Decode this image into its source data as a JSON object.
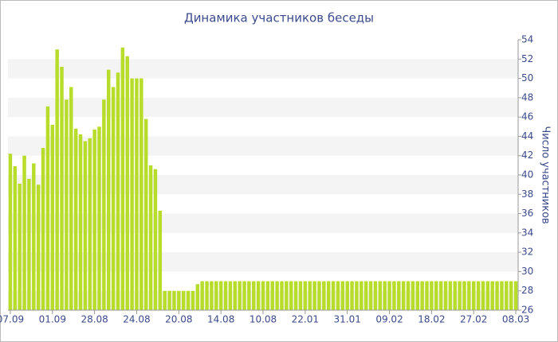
{
  "chart_data": {
    "type": "bar",
    "title": "Динамика участников беседы",
    "y_label": "Число участников",
    "categories": [
      "07.09",
      null,
      null,
      null,
      null,
      null,
      null,
      null,
      null,
      "01.09",
      null,
      null,
      null,
      null,
      null,
      null,
      null,
      null,
      "28.08",
      null,
      null,
      null,
      null,
      null,
      null,
      null,
      null,
      "24.08",
      null,
      null,
      null,
      null,
      null,
      null,
      null,
      null,
      "20.08",
      null,
      null,
      null,
      null,
      null,
      null,
      null,
      null,
      "14.08",
      null,
      null,
      null,
      null,
      null,
      null,
      null,
      null,
      "10.08",
      null,
      null,
      null,
      null,
      null,
      null,
      null,
      null,
      "22.01",
      null,
      null,
      null,
      null,
      null,
      null,
      null,
      null,
      "31.01",
      null,
      null,
      null,
      null,
      null,
      null,
      null,
      null,
      "09.02",
      null,
      null,
      null,
      null,
      null,
      null,
      null,
      null,
      "18.02",
      null,
      null,
      null,
      null,
      null,
      null,
      null,
      null,
      "27.02",
      null,
      null,
      null,
      null,
      null,
      null,
      null,
      null,
      "08.03"
    ],
    "values": [
      42.2,
      40.9,
      39.1,
      42.0,
      39.6,
      41.2,
      39.0,
      42.8,
      47.1,
      45.2,
      53.0,
      51.2,
      47.8,
      49.1,
      44.8,
      44.2,
      43.5,
      43.8,
      44.7,
      45.0,
      47.8,
      50.9,
      49.1,
      50.6,
      53.2,
      52.3,
      50.0,
      50.0,
      50.0,
      45.8,
      41.0,
      40.6,
      36.3,
      28,
      28,
      28,
      28,
      28,
      28,
      28,
      28.7,
      29,
      29,
      29,
      29,
      29,
      29,
      29,
      29,
      29,
      29,
      29,
      29,
      29,
      29,
      29,
      29,
      29,
      29,
      29,
      29,
      29,
      29,
      29,
      29,
      29,
      29,
      29,
      29,
      29,
      29,
      29,
      29,
      29,
      29,
      29,
      29,
      29,
      29,
      29,
      29,
      29,
      29,
      29,
      29,
      29,
      29,
      29,
      29,
      29,
      29,
      29,
      29,
      29,
      29,
      29,
      29,
      29,
      29,
      29,
      29,
      29,
      29,
      29,
      29,
      29,
      29,
      29,
      29
    ],
    "color": "#b7dc2a",
    "ylim": [
      26,
      54
    ],
    "yticks": [
      26,
      28,
      30,
      32,
      34,
      36,
      38,
      40,
      42,
      44,
      46,
      48,
      50,
      52,
      54
    ],
    "grid": true
  }
}
